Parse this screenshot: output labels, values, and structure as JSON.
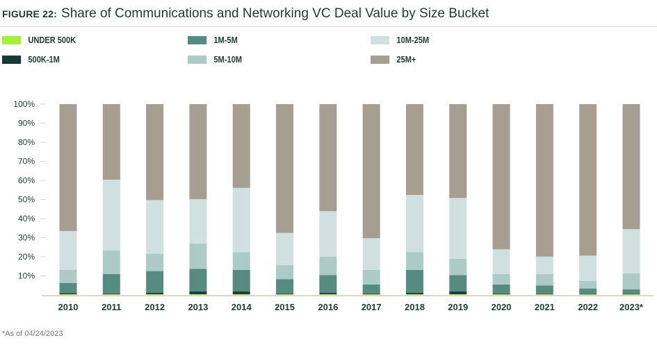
{
  "title": {
    "figure": "FIGURE 22:",
    "text": "Share of Communications and Networking VC Deal Value by Size Bucket"
  },
  "footnote": "*As of 04/24/2023",
  "chart_data": {
    "type": "bar",
    "stacked": true,
    "title": "Share of Communications and Networking VC Deal Value by Size Bucket",
    "xlabel": "",
    "ylabel": "",
    "ylim": [
      0,
      100
    ],
    "yticks": [
      "10%",
      "20%",
      "30%",
      "40%",
      "50%",
      "60%",
      "70%",
      "80%",
      "90%",
      "100%"
    ],
    "grid": false,
    "legend_position": "top",
    "categories": [
      "2010",
      "2011",
      "2012",
      "2013",
      "2014",
      "2015",
      "2016",
      "2017",
      "2018",
      "2019",
      "2020",
      "2021",
      "2022",
      "2023*"
    ],
    "series": [
      {
        "name": "UNDER 500K",
        "color": "#a4f03a",
        "values": [
          0.4,
          0.4,
          0.4,
          0.4,
          0.4,
          0.4,
          0.4,
          0.4,
          0.4,
          0.4,
          0.4,
          0.4,
          0.4,
          0.4
        ]
      },
      {
        "name": "500K-1M",
        "color": "#163a36",
        "values": [
          0.5,
          0.4,
          0.8,
          1.4,
          1.4,
          0.4,
          0.8,
          0.4,
          0.8,
          1.4,
          0.4,
          0.1,
          0.1,
          0.1
        ]
      },
      {
        "name": "1M-5M",
        "color": "#578a80",
        "values": [
          5.4,
          10.1,
          11.3,
          11.9,
          11.3,
          7.5,
          9.2,
          4.7,
          11.9,
          8.6,
          4.7,
          4.5,
          2.9,
          2.4
        ]
      },
      {
        "name": "5M-10M",
        "color": "#adcbc5",
        "values": [
          6.9,
          12.4,
          9.1,
          13.3,
          9.4,
          7.3,
          9.6,
          7.6,
          9.4,
          8.5,
          5.4,
          5.9,
          3.9,
          8.4
        ]
      },
      {
        "name": "10M-25M",
        "color": "#cfe0de",
        "values": [
          20.3,
          37.1,
          28.1,
          23.2,
          33.6,
          16.9,
          23.9,
          16.6,
          29.9,
          31.9,
          13.0,
          9.2,
          13.3,
          23.2
        ]
      },
      {
        "name": "25M+",
        "color": "#a69e91",
        "values": [
          66.5,
          39.6,
          50.3,
          49.8,
          43.9,
          67.5,
          56.1,
          70.3,
          47.6,
          49.2,
          76.1,
          79.9,
          79.4,
          65.5
        ]
      }
    ]
  }
}
